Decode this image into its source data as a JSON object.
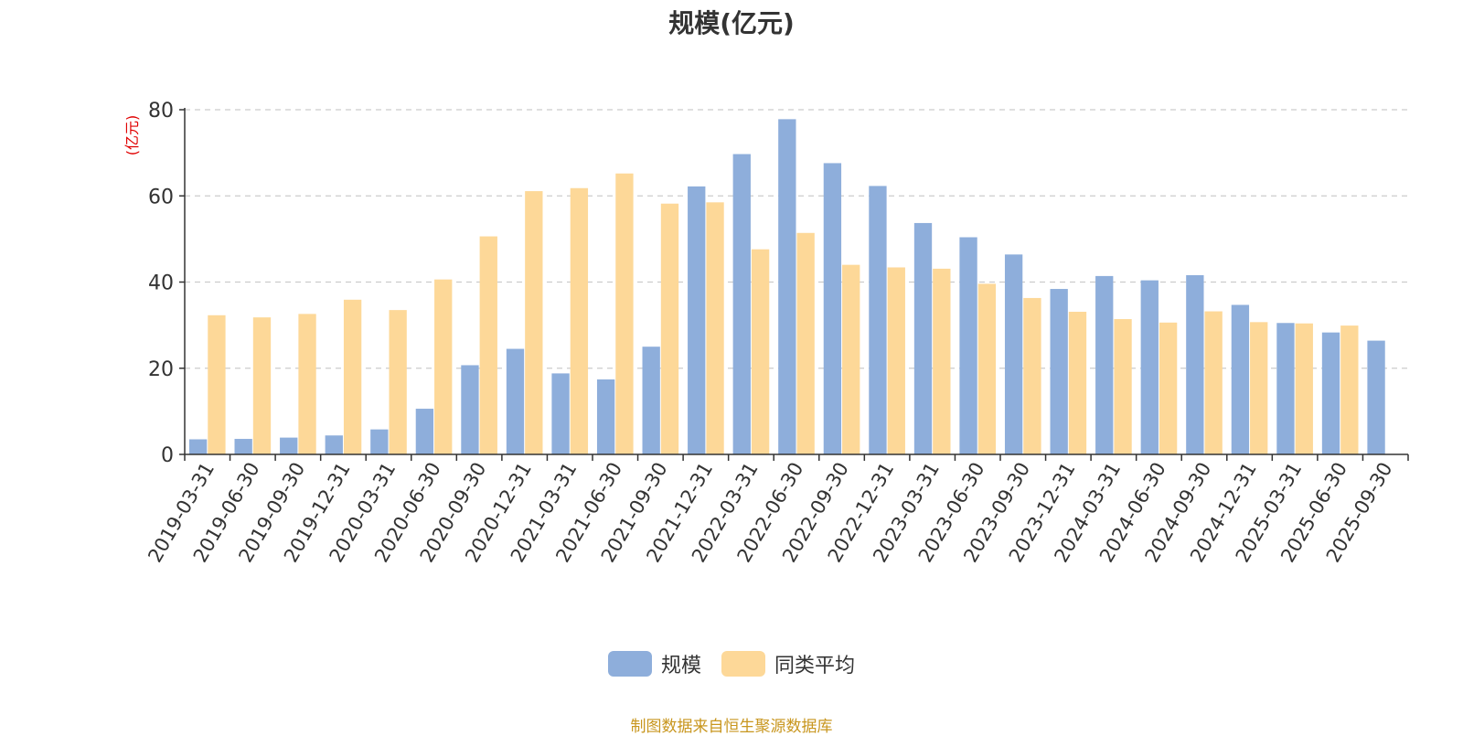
{
  "chart_data": {
    "type": "bar",
    "title": "规模(亿元)",
    "ylabel": "(亿元)",
    "xlabel": "",
    "ylim": [
      0,
      80
    ],
    "yticks": [
      0,
      20,
      40,
      60,
      80
    ],
    "grid": true,
    "legend_position": "bottom-center",
    "categories": [
      "2019-03-31",
      "2019-06-30",
      "2019-09-30",
      "2019-12-31",
      "2020-03-31",
      "2020-06-30",
      "2020-09-30",
      "2020-12-31",
      "2021-03-31",
      "2021-06-30",
      "2021-09-30",
      "2021-12-31",
      "2022-03-31",
      "2022-06-30",
      "2022-09-30",
      "2022-12-31",
      "2023-03-31",
      "2023-06-30",
      "2023-09-30",
      "2023-12-31",
      "2024-03-31",
      "2024-06-30",
      "2024-09-30",
      "2024-12-31",
      "2025-03-31",
      "2025-06-30",
      "2025-09-30"
    ],
    "series": [
      {
        "name": "规模",
        "color": "#8eaedb",
        "values": [
          3.5,
          3.6,
          3.9,
          4.4,
          5.8,
          10.6,
          20.7,
          24.5,
          18.8,
          17.4,
          25.0,
          62.2,
          69.7,
          77.8,
          67.6,
          62.3,
          53.7,
          50.4,
          46.4,
          38.4,
          41.4,
          40.4,
          41.6,
          34.7,
          30.5,
          28.3,
          26.4
        ]
      },
      {
        "name": "同类平均",
        "color": "#fdd898",
        "values": [
          32.3,
          31.8,
          32.6,
          35.9,
          33.5,
          40.6,
          50.6,
          61.1,
          61.8,
          65.2,
          58.2,
          58.5,
          47.6,
          51.4,
          44.0,
          43.4,
          43.1,
          39.6,
          36.3,
          33.1,
          31.4,
          30.6,
          33.2,
          30.7,
          30.4,
          29.9,
          null
        ]
      }
    ]
  },
  "source_note": "制图数据来自恒生聚源数据库",
  "colors": {
    "axis": "#333333",
    "grid": "#cccccc",
    "ylabel": "#e00000",
    "source": "#c8961e"
  }
}
